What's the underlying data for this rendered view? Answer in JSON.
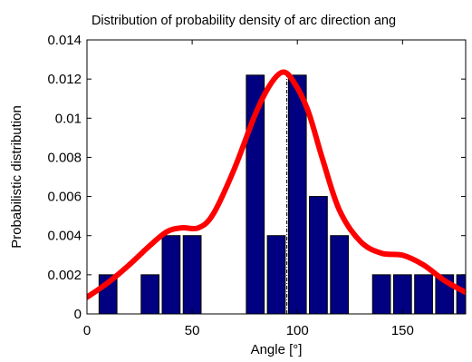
{
  "chart_data": {
    "type": "bar",
    "title": "Distribution of probability density of arc direction ang",
    "xlabel": "Angle [°]",
    "ylabel": "Probabilistic distribution",
    "xlim": [
      0,
      180
    ],
    "ylim": [
      0,
      0.014
    ],
    "xticks": [
      0,
      50,
      100,
      150
    ],
    "xtick_labels": [
      "0",
      "50",
      "100",
      "150"
    ],
    "yticks": [
      0,
      0.002,
      0.004,
      0.006,
      0.008,
      0.01,
      0.012,
      0.014
    ],
    "ytick_labels": [
      "0",
      "0.002",
      "0.004",
      "0.006",
      "0.008",
      "0.01",
      "0.012",
      "0.014"
    ],
    "grid": false,
    "bar_width": 8.5,
    "bar_color": "#000080",
    "bars": {
      "x": [
        10,
        30,
        40,
        50,
        80,
        90,
        100,
        110,
        120,
        140,
        150,
        160,
        170,
        180
      ],
      "values": [
        0.002,
        0.002,
        0.004,
        0.004,
        0.0122,
        0.004,
        0.0122,
        0.006,
        0.004,
        0.002,
        0.002,
        0.002,
        0.002,
        0.002
      ]
    },
    "curve": {
      "color": "#ff0000",
      "x": [
        0,
        10,
        20,
        30,
        38,
        45,
        53,
        60,
        70,
        80,
        87,
        93,
        98,
        105,
        112,
        120,
        130,
        140,
        150,
        160,
        170,
        180
      ],
      "y": [
        0.00085,
        0.0016,
        0.0025,
        0.0035,
        0.0042,
        0.0044,
        0.0044,
        0.0051,
        0.0074,
        0.0102,
        0.0117,
        0.01235,
        0.0119,
        0.0104,
        0.0079,
        0.0053,
        0.0037,
        0.0031,
        0.003,
        0.0025,
        0.0017,
        0.0011
      ]
    },
    "vline": {
      "x": 95,
      "y": 0.0122,
      "style": "dash-dot"
    }
  }
}
